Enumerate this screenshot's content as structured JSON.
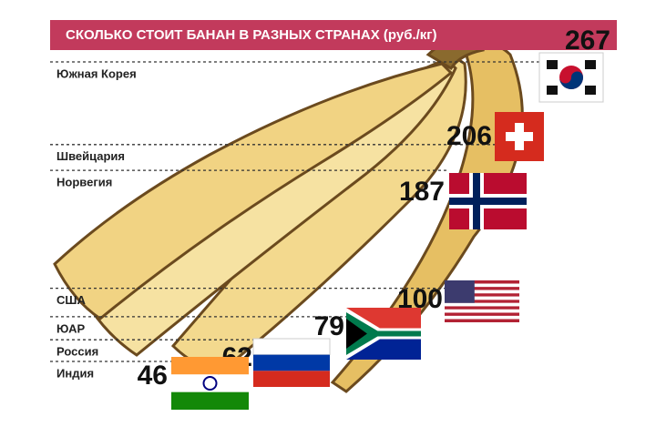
{
  "chart_data": {
    "type": "pictorial-bar",
    "title": "СКОЛЬКО СТОИТ БАНАН В РАЗНЫХ СТРАНАХ (руб./кг)",
    "categories": [
      "Южная Корея",
      "Швейцария",
      "Норвегия",
      "США",
      "ЮАР",
      "Россия",
      "Индия"
    ],
    "values": [
      267,
      206,
      187,
      100,
      79,
      62,
      46
    ],
    "color": "#f1d383"
  }
}
